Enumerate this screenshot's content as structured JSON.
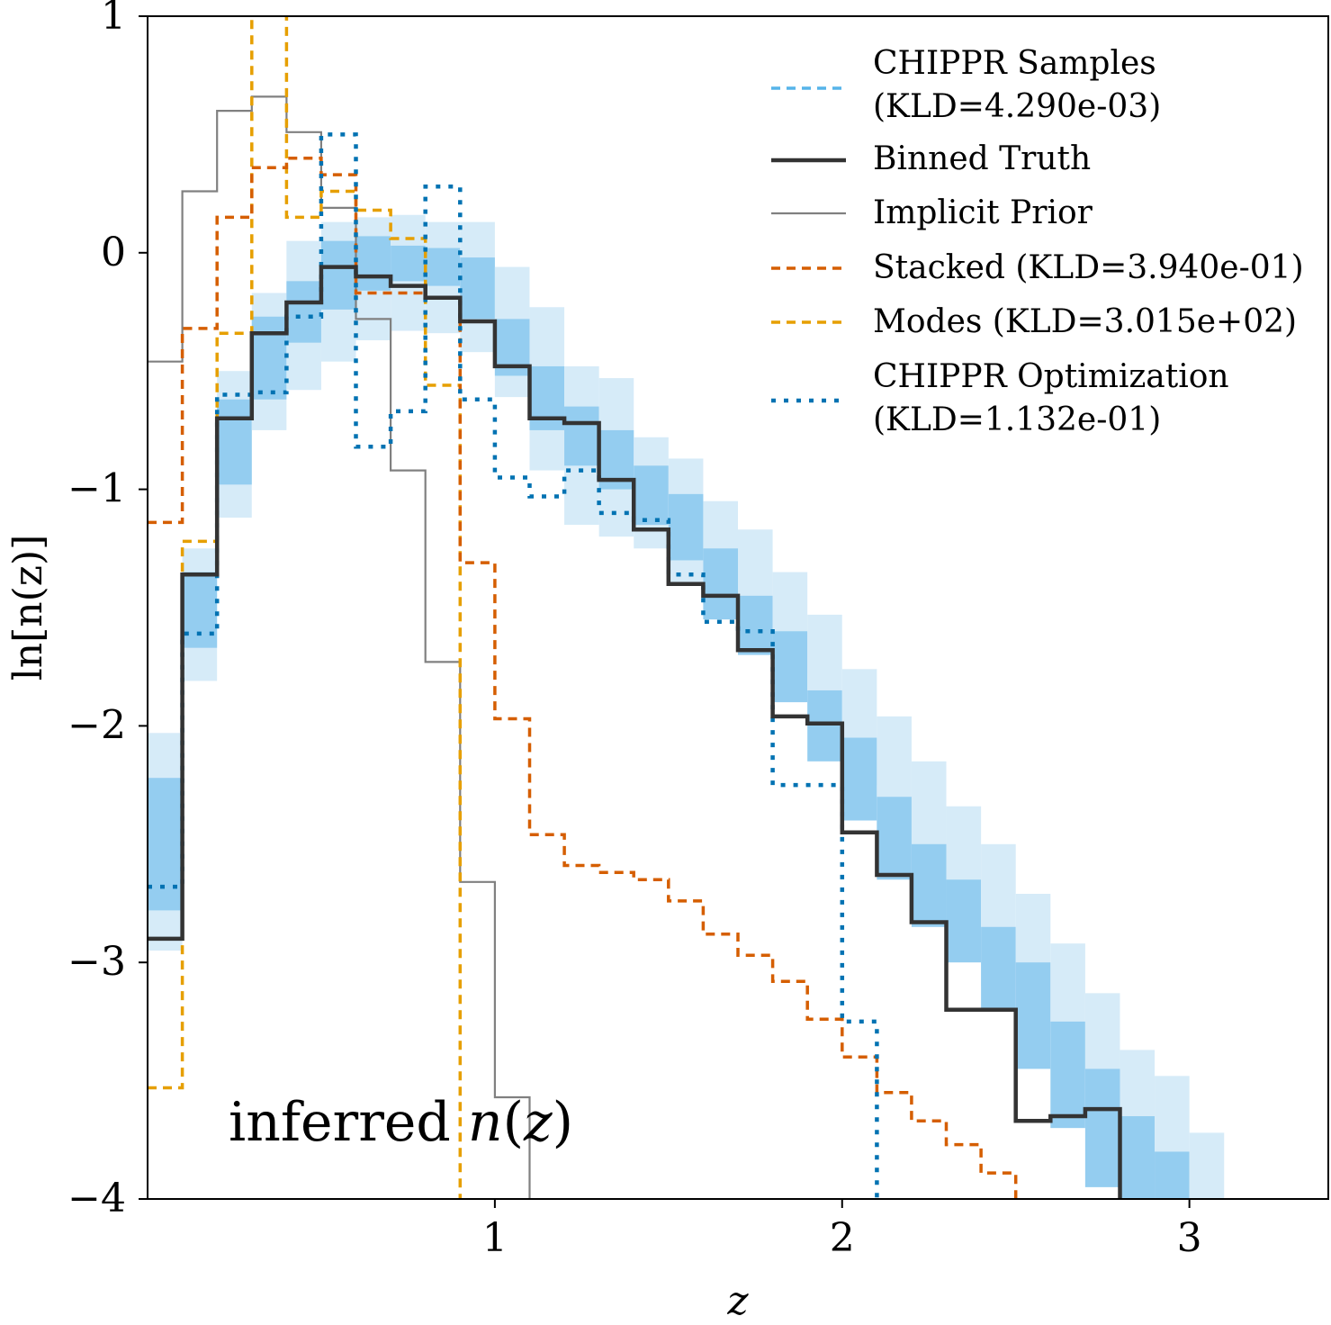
{
  "chart_data": {
    "type": "line",
    "xlabel": "z",
    "ylabel": "ln[n(z)]",
    "xlim": [
      0.0,
      3.4
    ],
    "ylim": [
      -4,
      1
    ],
    "xticks": [
      1,
      2,
      3
    ],
    "yticks": [
      1,
      0,
      -1,
      -2,
      -3,
      -4
    ],
    "xtick_labels": [
      "1",
      "2",
      "3"
    ],
    "ytick_labels": [
      "1",
      "0",
      "−1",
      "−2",
      "−3",
      "−4"
    ],
    "annotation": "inferred n(z)",
    "annotation_parts": {
      "prefix": "inferred ",
      "func": "n",
      "open": "(",
      "var": "z",
      "close": ")"
    },
    "legend_position": "upper right",
    "grid": false,
    "bin_edges": [
      0.0,
      0.1,
      0.2,
      0.3,
      0.4,
      0.5,
      0.6,
      0.7,
      0.8,
      0.9,
      1.0,
      1.1,
      1.2,
      1.3,
      1.4,
      1.5,
      1.6,
      1.7,
      1.8,
      1.9,
      2.0,
      2.1,
      2.2,
      2.3,
      2.4,
      2.5,
      2.6,
      2.7,
      2.8,
      2.9,
      3.0,
      3.1,
      3.2,
      3.3,
      3.4
    ],
    "bands": {
      "name": "CHIPPR Samples",
      "inner_low": [
        -2.78,
        -1.67,
        -0.98,
        -0.62,
        -0.38,
        -0.24,
        -0.16,
        -0.12,
        -0.14,
        -0.28,
        -0.52,
        -0.75,
        -0.9,
        -1.0,
        -1.15,
        -1.3,
        -1.55,
        -1.7,
        -1.9,
        -2.15,
        -2.4,
        -2.65,
        -2.85,
        -3.0,
        -3.2,
        -3.45,
        -3.7,
        -3.95,
        -4.1,
        -4.2,
        -4.2,
        -4.2,
        -4.2,
        -4.2
      ],
      "inner_high": [
        -2.22,
        -1.35,
        -0.62,
        -0.27,
        -0.12,
        0.05,
        0.07,
        0.03,
        0.02,
        -0.02,
        -0.28,
        -0.48,
        -0.65,
        -0.75,
        -0.9,
        -1.02,
        -1.25,
        -1.45,
        -1.6,
        -1.85,
        -2.05,
        -2.3,
        -2.5,
        -2.65,
        -2.85,
        -3.0,
        -3.25,
        -3.45,
        -3.65,
        -3.8,
        -4.2,
        -4.2,
        -4.2,
        -4.2
      ],
      "outer_low": [
        -2.95,
        -1.81,
        -1.12,
        -0.75,
        -0.58,
        -0.46,
        -0.37,
        -0.33,
        -0.34,
        -0.42,
        -0.61,
        -0.92,
        -1.15,
        -1.2,
        -1.25,
        -1.4,
        -1.55,
        -1.7,
        -1.78,
        -2.0,
        -2.25,
        -2.5,
        -2.75,
        -2.9,
        -3.1,
        -3.3,
        -3.45,
        -3.7,
        -3.85,
        -4.05,
        -4.2,
        -4.2,
        -4.2,
        -4.2
      ],
      "outer_high": [
        -2.03,
        -1.25,
        -0.5,
        -0.17,
        0.05,
        0.13,
        0.15,
        0.16,
        0.13,
        0.13,
        -0.06,
        -0.23,
        -0.48,
        -0.53,
        -0.78,
        -0.87,
        -1.05,
        -1.17,
        -1.35,
        -1.53,
        -1.76,
        -1.96,
        -2.15,
        -2.34,
        -2.5,
        -2.71,
        -2.92,
        -3.13,
        -3.37,
        -3.48,
        -3.72,
        -4.2,
        -4.2,
        -4.2
      ]
    },
    "series": [
      {
        "name": "Binned Truth",
        "color": "#333333",
        "style": "solid-thick",
        "values": [
          -2.9,
          -1.36,
          -0.7,
          -0.34,
          -0.21,
          -0.06,
          -0.1,
          -0.14,
          -0.19,
          -0.29,
          -0.48,
          -0.7,
          -0.72,
          -0.96,
          -1.17,
          -1.4,
          -1.45,
          -1.68,
          -1.96,
          -1.99,
          -2.45,
          -2.63,
          -2.83,
          -3.2,
          -3.2,
          -3.67,
          -3.65,
          -3.62,
          -4.2,
          -4.2,
          -4.2,
          -4.2,
          -4.2,
          -4.2
        ]
      },
      {
        "name": "Implicit Prior",
        "color": "#808080",
        "style": "solid-thin",
        "values": [
          -0.46,
          0.26,
          0.6,
          0.66,
          0.51,
          0.19,
          -0.28,
          -0.92,
          -1.73,
          -2.66,
          -3.57,
          -4.2,
          -4.2,
          -4.2,
          -4.2,
          -4.2,
          -4.2,
          -4.2,
          -4.2,
          -4.2,
          -4.2,
          -4.2,
          -4.2,
          -4.2,
          -4.2,
          -4.2,
          -4.2,
          -4.2,
          -4.2,
          -4.2,
          -4.2,
          -4.2,
          -4.2,
          -4.2
        ]
      },
      {
        "name": "Stacked",
        "legend_label": "Stacked (KLD=3.940e-01)",
        "color": "#d55e00",
        "style": "dashed",
        "values": [
          -1.14,
          -0.32,
          0.15,
          0.36,
          0.4,
          0.33,
          -0.17,
          -0.17,
          -0.19,
          -1.31,
          -1.97,
          -2.46,
          -2.59,
          -2.62,
          -2.65,
          -2.74,
          -2.88,
          -2.97,
          -3.08,
          -3.24,
          -3.4,
          -3.55,
          -3.67,
          -3.77,
          -3.89,
          -4.01,
          -4.2,
          -4.2,
          -4.2,
          -4.2,
          -4.2,
          -4.2,
          -4.2,
          -4.2
        ]
      },
      {
        "name": "Modes",
        "legend_label": "Modes (KLD=3.015e+02)",
        "color": "#e69f00",
        "style": "dashed",
        "values": [
          -3.53,
          -1.22,
          -0.34,
          1.2,
          0.15,
          0.26,
          0.18,
          0.06,
          -0.56,
          -4.2,
          -4.2,
          -4.2,
          -4.2,
          -4.2,
          -4.2,
          -4.2,
          -4.2,
          -4.2,
          -4.2,
          -4.2,
          -4.2,
          -4.2,
          -4.2,
          -4.2,
          -4.2,
          -4.2,
          -4.2,
          -4.2,
          -4.2,
          -4.2,
          -4.2,
          -4.2,
          -4.2,
          -4.2
        ]
      },
      {
        "name": "CHIPPR Optimization",
        "legend_label": "CHIPPR Optimization (KLD=1.132e-01)",
        "color": "#0072b2",
        "style": "dotted",
        "values": [
          -2.68,
          -1.61,
          -0.6,
          -0.59,
          -0.27,
          0.5,
          -0.82,
          -0.67,
          0.28,
          -0.62,
          -0.95,
          -1.03,
          -0.92,
          -1.1,
          -1.13,
          -1.36,
          -1.56,
          -1.6,
          -2.25,
          -2.25,
          -3.25,
          -4.2,
          -4.2,
          -4.2,
          -4.2,
          -4.2,
          -4.2,
          -4.2,
          -4.2,
          -4.2,
          -4.2,
          -4.2,
          -4.2,
          -4.2
        ]
      }
    ],
    "legend": [
      {
        "label_line1": "CHIPPR Samples",
        "label_line2": "(KLD=4.290e-03)",
        "color": "#56b4e9",
        "style": "dashed"
      },
      {
        "label_line1": "Binned Truth",
        "label_line2": "",
        "color": "#333333",
        "style": "solid-thick"
      },
      {
        "label_line1": "Implicit Prior",
        "label_line2": "",
        "color": "#808080",
        "style": "solid-thin"
      },
      {
        "label_line1": "Stacked (KLD=3.940e-01)",
        "label_line2": "",
        "color": "#d55e00",
        "style": "dashed"
      },
      {
        "label_line1": "Modes (KLD=3.015e+02)",
        "label_line2": "",
        "color": "#e69f00",
        "style": "dashed"
      },
      {
        "label_line1": "CHIPPR Optimization",
        "label_line2": "(KLD=1.132e-01)",
        "color": "#0072b2",
        "style": "dotted"
      }
    ],
    "band_colors": {
      "inner": "#94cdf0",
      "outer": "#d6ebf8"
    }
  }
}
